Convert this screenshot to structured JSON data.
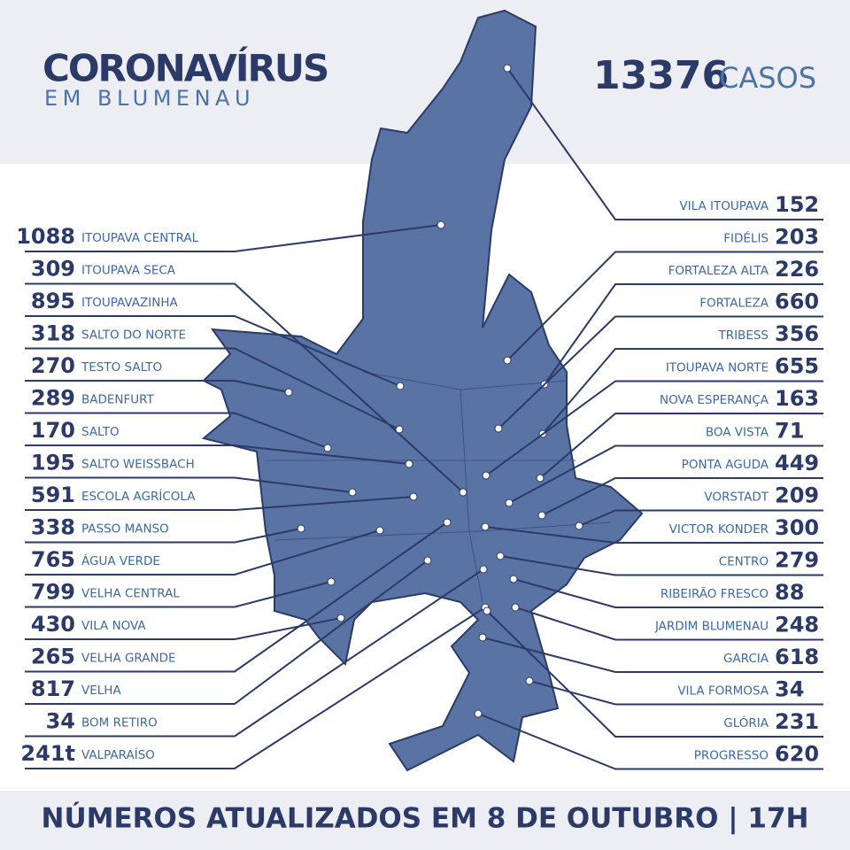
{
  "header": {
    "title": "CORONAVÍRUS",
    "subtitle": "EM BLUMENAU"
  },
  "total": {
    "value": 13376,
    "label": "CASOS"
  },
  "left_list": [
    {
      "count": 1088,
      "name": "ITOUPAVA CENTRAL"
    },
    {
      "count": 309,
      "name": "ITOUPAVA SECA"
    },
    {
      "count": 895,
      "name": "ITOUPAVAZINHA"
    },
    {
      "count": 318,
      "name": "SALTO DO NORTE"
    },
    {
      "count": 270,
      "name": "TESTO SALTO"
    },
    {
      "count": 289,
      "name": "BADENFURT"
    },
    {
      "count": 170,
      "name": "SALTO"
    },
    {
      "count": 195,
      "name": "SALTO WEISSBACH"
    },
    {
      "count": 591,
      "name": "ESCOLA AGRÍCOLA"
    },
    {
      "count": 338,
      "name": "PASSO MANSO"
    },
    {
      "count": 765,
      "name": "ÁGUA VERDE"
    },
    {
      "count": 799,
      "name": "VELHA CENTRAL"
    },
    {
      "count": 430,
      "name": "VILA NOVA"
    },
    {
      "count": 265,
      "name": "VELHA GRANDE"
    },
    {
      "count": 817,
      "name": "VELHA"
    },
    {
      "count": 34,
      "name": "BOM RETIRO"
    },
    {
      "count": "241t",
      "name": "VALPARAÍSO"
    }
  ],
  "right_list": [
    {
      "name": "VILA ITOUPAVA",
      "count": 152
    },
    {
      "name": "FIDÉLIS",
      "count": 203
    },
    {
      "name": "FORTALEZA ALTA",
      "count": 226
    },
    {
      "name": "FORTALEZA",
      "count": 660
    },
    {
      "name": "TRIBESS",
      "count": 356
    },
    {
      "name": "ITOUPAVA NORTE",
      "count": 655
    },
    {
      "name": "NOVA ESPERANÇA",
      "count": 163
    },
    {
      "name": "BOA VISTA",
      "count": 71
    },
    {
      "name": "PONTA AGUDA",
      "count": 449
    },
    {
      "name": "VORSTADT",
      "count": 209
    },
    {
      "name": "VICTOR KONDER",
      "count": 300
    },
    {
      "name": "CENTRO",
      "count": 279
    },
    {
      "name": "RIBEIRÃO FRESCO",
      "count": 88
    },
    {
      "name": "JARDIM BLUMENAU",
      "count": 248
    },
    {
      "name": "GARCIA",
      "count": 618
    },
    {
      "name": "VILA FORMOSA",
      "count": 34
    },
    {
      "name": "GLÓRIA",
      "count": 231
    },
    {
      "name": "PROGRESSO",
      "count": 620
    }
  ],
  "footer": "NÚMEROS ATUALIZADOS EM 8 DE OUTUBRO | 17H"
}
